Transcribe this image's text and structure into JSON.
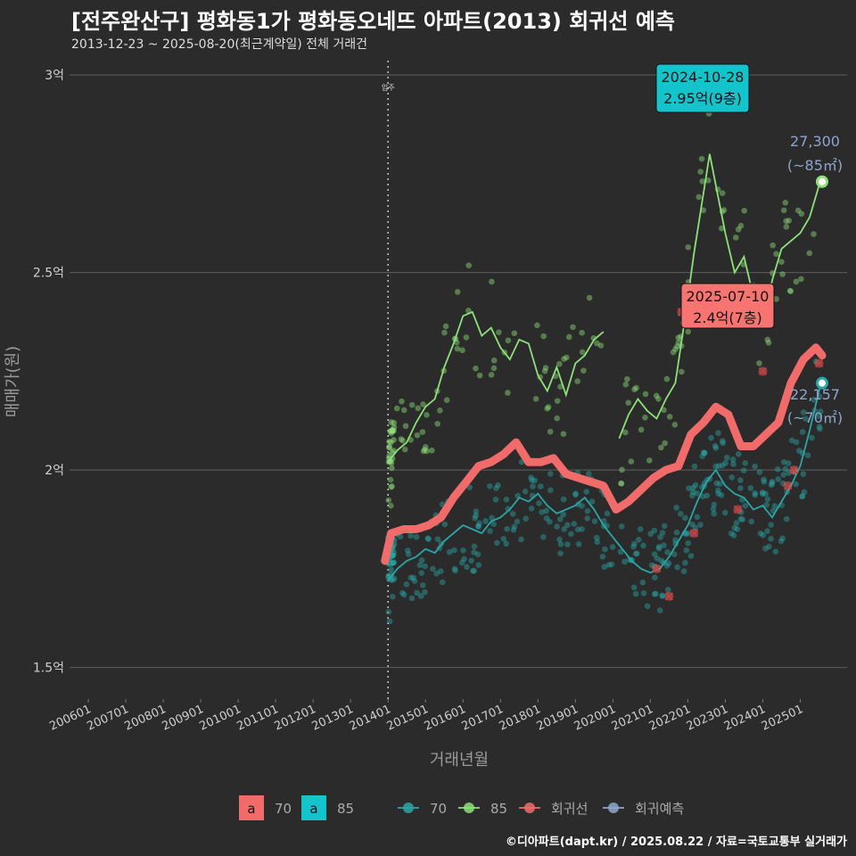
{
  "header": {
    "title": "[전주완산구] 평화동1가 평화동오네뜨 아파트(2013) 회귀선 예측",
    "subtitle": "2013-12-23 ~ 2025-08-20(최근계약일) 전체 거래건"
  },
  "footer": {
    "credit": "©디아파트(dapt.kr) / 2025.08.22 / 자료=국토교통부 실거래가"
  },
  "colors": {
    "background": "#2b2b2b",
    "gridline": "#555555",
    "series_70": "#2aa6a6",
    "series_85": "#8ee07a",
    "regression": "#f26b6b",
    "forecast": "#8ea6cc",
    "callout_85_fill": "#13c4cc",
    "callout_reg_fill": "#f87471"
  },
  "chart_data": {
    "type": "line",
    "xlabel": "거래년월",
    "ylabel": "매매가(원)",
    "x_range": [
      "2005-07",
      "2026-04"
    ],
    "ylim": [
      1.42,
      3.05
    ],
    "y_ticks": [
      {
        "value": 1.5,
        "label": "1.5억"
      },
      {
        "value": 2.0,
        "label": "2억"
      },
      {
        "value": 2.5,
        "label": "2.5억"
      },
      {
        "value": 3.0,
        "label": "3억"
      }
    ],
    "x_ticks": [
      "200601",
      "200701",
      "200801",
      "200901",
      "201001",
      "201101",
      "201201",
      "201301",
      "201401",
      "201501",
      "201601",
      "201701",
      "201801",
      "201901",
      "202001",
      "202101",
      "202201",
      "202301",
      "202401",
      "202501"
    ],
    "move_in": {
      "date": "2014-01",
      "label": "입주"
    },
    "series": [
      {
        "name": "70",
        "points": [
          [
            "2014-01",
            1.72
          ],
          [
            "2014-04",
            1.75
          ],
          [
            "2014-07",
            1.77
          ],
          [
            "2014-10",
            1.78
          ],
          [
            "2015-01",
            1.8
          ],
          [
            "2015-04",
            1.79
          ],
          [
            "2015-07",
            1.82
          ],
          [
            "2015-10",
            1.84
          ],
          [
            "2016-01",
            1.86
          ],
          [
            "2016-04",
            1.85
          ],
          [
            "2016-07",
            1.84
          ],
          [
            "2016-10",
            1.87
          ],
          [
            "2017-01",
            1.88
          ],
          [
            "2017-04",
            1.9
          ],
          [
            "2017-07",
            1.93
          ],
          [
            "2017-10",
            1.92
          ],
          [
            "2018-01",
            1.94
          ],
          [
            "2018-04",
            1.91
          ],
          [
            "2018-07",
            1.89
          ],
          [
            "2018-10",
            1.9
          ],
          [
            "2019-01",
            1.91
          ],
          [
            "2019-04",
            1.93
          ],
          [
            "2019-07",
            1.9
          ],
          [
            "2019-10",
            1.86
          ],
          [
            "2020-01",
            1.83
          ],
          [
            "2020-04",
            1.8
          ],
          [
            "2020-07",
            1.77
          ],
          [
            "2020-10",
            1.75
          ],
          [
            "2021-01",
            1.74
          ],
          [
            "2021-04",
            1.75
          ],
          [
            "2021-07",
            1.78
          ],
          [
            "2021-10",
            1.82
          ],
          [
            "2022-01",
            1.86
          ],
          [
            "2022-04",
            1.92
          ],
          [
            "2022-07",
            1.97
          ],
          [
            "2022-10",
            2.0
          ],
          [
            "2023-01",
            1.96
          ],
          [
            "2023-04",
            1.94
          ],
          [
            "2023-07",
            1.93
          ],
          [
            "2023-10",
            1.9
          ],
          [
            "2024-01",
            1.91
          ],
          [
            "2024-04",
            1.88
          ],
          [
            "2024-07",
            1.92
          ],
          [
            "2024-10",
            1.96
          ],
          [
            "2025-01",
            2.01
          ],
          [
            "2025-04",
            2.1
          ],
          [
            "2025-07",
            2.2
          ],
          [
            "2025-08",
            2.22
          ]
        ]
      },
      {
        "name": "85",
        "points": [
          [
            "2014-01",
            2.02
          ],
          [
            "2014-04",
            2.05
          ],
          [
            "2014-07",
            2.07
          ],
          [
            "2014-10",
            2.12
          ],
          [
            "2015-01",
            2.16
          ],
          [
            "2015-04",
            2.18
          ],
          [
            "2015-07",
            2.26
          ],
          [
            "2015-10",
            2.32
          ],
          [
            "2016-01",
            2.39
          ],
          [
            "2016-04",
            2.4
          ],
          [
            "2016-07",
            2.34
          ],
          [
            "2016-10",
            2.36
          ],
          [
            "2017-01",
            2.31
          ],
          [
            "2017-04",
            2.28
          ],
          [
            "2017-07",
            2.33
          ],
          [
            "2017-10",
            2.32
          ],
          [
            "2018-01",
            2.24
          ],
          [
            "2018-04",
            2.2
          ],
          [
            "2018-07",
            2.26
          ],
          [
            "2018-10",
            2.19
          ],
          [
            "2019-01",
            2.27
          ],
          [
            "2019-04",
            2.29
          ],
          [
            "2019-07",
            2.33
          ],
          [
            "2019-10",
            2.35
          ],
          [
            null,
            null
          ],
          [
            "2020-03",
            2.08
          ],
          [
            "2020-06",
            2.14
          ],
          [
            "2020-09",
            2.18
          ],
          [
            "2020-12",
            2.15
          ],
          [
            "2021-03",
            2.13
          ],
          [
            "2021-06",
            2.18
          ],
          [
            "2021-09",
            2.22
          ],
          [
            "2021-12",
            2.38
          ],
          [
            "2022-03",
            2.55
          ],
          [
            "2022-06",
            2.7
          ],
          [
            "2022-08",
            2.8
          ],
          [
            "2022-10",
            2.72
          ],
          [
            "2023-01",
            2.6
          ],
          [
            "2023-04",
            2.5
          ],
          [
            "2023-07",
            2.54
          ],
          [
            "2023-10",
            2.44
          ],
          [
            "2024-01",
            2.37
          ],
          [
            "2024-04",
            2.48
          ],
          [
            "2024-07",
            2.56
          ],
          [
            "2024-10",
            2.58
          ],
          [
            "2025-01",
            2.6
          ],
          [
            "2025-04",
            2.64
          ],
          [
            "2025-07",
            2.72
          ],
          [
            "2025-08",
            2.73
          ]
        ]
      },
      {
        "name": "회귀선",
        "points": [
          [
            "2013-12",
            1.77
          ],
          [
            "2014-02",
            1.84
          ],
          [
            "2014-06",
            1.85
          ],
          [
            "2014-10",
            1.85
          ],
          [
            "2015-02",
            1.86
          ],
          [
            "2015-06",
            1.88
          ],
          [
            "2015-10",
            1.93
          ],
          [
            "2016-02",
            1.97
          ],
          [
            "2016-06",
            2.01
          ],
          [
            "2016-10",
            2.02
          ],
          [
            "2017-02",
            2.04
          ],
          [
            "2017-06",
            2.07
          ],
          [
            "2017-10",
            2.02
          ],
          [
            "2018-02",
            2.02
          ],
          [
            "2018-06",
            2.03
          ],
          [
            "2018-10",
            1.99
          ],
          [
            "2019-02",
            1.98
          ],
          [
            "2019-06",
            1.97
          ],
          [
            "2019-10",
            1.96
          ],
          [
            "2020-02",
            1.9
          ],
          [
            "2020-06",
            1.92
          ],
          [
            "2020-10",
            1.95
          ],
          [
            "2021-02",
            1.98
          ],
          [
            "2021-06",
            2.0
          ],
          [
            "2021-10",
            2.01
          ],
          [
            "2022-02",
            2.09
          ],
          [
            "2022-06",
            2.12
          ],
          [
            "2022-10",
            2.16
          ],
          [
            "2023-02",
            2.14
          ],
          [
            "2023-06",
            2.06
          ],
          [
            "2023-10",
            2.06
          ],
          [
            "2024-02",
            2.09
          ],
          [
            "2024-06",
            2.12
          ],
          [
            "2024-10",
            2.22
          ],
          [
            "2025-02",
            2.28
          ],
          [
            "2025-06",
            2.31
          ],
          [
            "2025-08",
            2.29
          ]
        ]
      },
      {
        "name": "회귀예측",
        "points": []
      }
    ],
    "legend": {
      "placement": "bottom",
      "area_items": [
        {
          "glyph": "a",
          "label": "70"
        },
        {
          "glyph": "a",
          "label": "85"
        }
      ],
      "line_items": [
        {
          "label": "70"
        },
        {
          "label": "85"
        },
        {
          "label": "회귀선"
        },
        {
          "label": "회귀예측"
        }
      ]
    },
    "annotations": {
      "callout_85": {
        "date": "2024-10-28",
        "value": "2.95억(9층)"
      },
      "callout_reg": {
        "date": "2025-07-10",
        "value": "2.4억(7층)"
      },
      "end_85": {
        "amount": "27,300",
        "area": "(~85㎡)"
      },
      "end_70": {
        "amount": "22,157",
        "area": "(~70㎡)"
      }
    },
    "markers_x": [
      [
        "2021-03",
        1.75
      ],
      [
        "2021-07",
        1.68
      ],
      [
        "2021-11",
        2.4
      ],
      [
        "2022-03",
        1.84
      ],
      [
        "2023-05",
        1.9
      ],
      [
        "2024-01",
        2.25
      ],
      [
        "2024-09",
        1.96
      ],
      [
        "2024-11",
        2.0
      ],
      [
        "2025-07",
        2.27
      ]
    ]
  }
}
